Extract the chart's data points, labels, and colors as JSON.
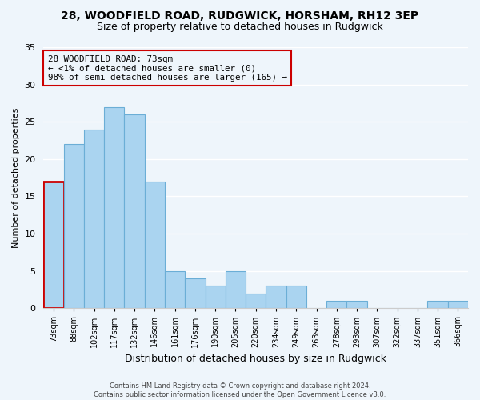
{
  "title1": "28, WOODFIELD ROAD, RUDGWICK, HORSHAM, RH12 3EP",
  "title2": "Size of property relative to detached houses in Rudgwick",
  "xlabel": "Distribution of detached houses by size in Rudgwick",
  "ylabel": "Number of detached properties",
  "bins": [
    "73sqm",
    "88sqm",
    "102sqm",
    "117sqm",
    "132sqm",
    "146sqm",
    "161sqm",
    "176sqm",
    "190sqm",
    "205sqm",
    "220sqm",
    "234sqm",
    "249sqm",
    "263sqm",
    "278sqm",
    "293sqm",
    "307sqm",
    "322sqm",
    "337sqm",
    "351sqm",
    "366sqm"
  ],
  "values": [
    17,
    22,
    24,
    27,
    26,
    17,
    5,
    4,
    3,
    5,
    2,
    3,
    3,
    0,
    1,
    1,
    0,
    0,
    0,
    1,
    1
  ],
  "bar_color": "#aad4f0",
  "bar_edge_color": "#6baed6",
  "highlight_bar_edge_color": "#cc0000",
  "highlight_index": 0,
  "annotation_title": "28 WOODFIELD ROAD: 73sqm",
  "annotation_line1": "← <1% of detached houses are smaller (0)",
  "annotation_line2": "98% of semi-detached houses are larger (165) →",
  "annotation_box_edge": "#cc0000",
  "ylim": [
    0,
    35
  ],
  "yticks": [
    0,
    5,
    10,
    15,
    20,
    25,
    30,
    35
  ],
  "footer1": "Contains HM Land Registry data © Crown copyright and database right 2024.",
  "footer2": "Contains public sector information licensed under the Open Government Licence v3.0.",
  "bg_color": "#eef5fb"
}
